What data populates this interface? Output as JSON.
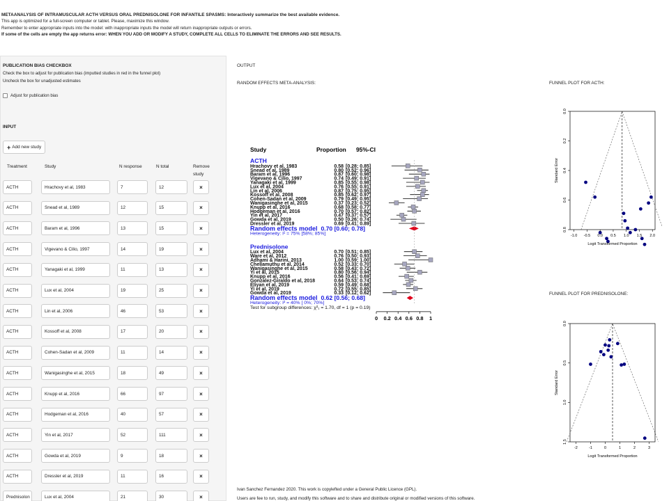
{
  "header": {
    "title": "METAANALYSIS OF INTRAMUSCULAR ACTH VERSUS ORAL PREDNISOLONE FOR INFANTILE SPASMS: Interactively summarize the best available evidence.",
    "line1": "This app is optimized for a full-screen computer or tablet. Please, maximize this window.",
    "line2": "Remember to enter appropriate inputs into the model: with inappropriate inputs the model will return inappropriate outputs or errors.",
    "line3": "If some of the cells are empty the app returns error: WHEN YOU ADD OR MODIFY A STUDY, COMPLETE ALL CELLS TO ELIMINATE THE ERRORS AND SEE RESULTS."
  },
  "sidebar": {
    "pb_title": "PUBLICATION BIAS CHECKBOX",
    "pb_line1": "Check the box to adjust for publication bias (imputted studies in red in the funnel plot)",
    "pb_line2": "Uncheck the box for unadjusted estimates",
    "pb_checkbox_label": "Adjust for publication bias",
    "input_title": "INPUT",
    "add_button": "Add new study",
    "columns": {
      "treatment": "Treatment",
      "study": "Study",
      "n_response": "N response",
      "n_total": "N total",
      "remove1": "Remove",
      "remove2": "study"
    },
    "remove_symbol": "×",
    "rows": [
      {
        "treatment": "ACTH",
        "study": "Hrachovy et al, 1983",
        "n_response": "7",
        "n_total": "12"
      },
      {
        "treatment": "ACTH",
        "study": "Snead et al, 1989",
        "n_response": "12",
        "n_total": "15"
      },
      {
        "treatment": "ACTH",
        "study": "Baram et al, 1996",
        "n_response": "13",
        "n_total": "15"
      },
      {
        "treatment": "ACTH",
        "study": "Vigevano & Cilio, 1997",
        "n_response": "14",
        "n_total": "19"
      },
      {
        "treatment": "ACTH",
        "study": "Yanagaki et al, 1999",
        "n_response": "11",
        "n_total": "13"
      },
      {
        "treatment": "ACTH",
        "study": "Lux et al, 2004",
        "n_response": "19",
        "n_total": "25"
      },
      {
        "treatment": "ACTH",
        "study": "Lin et al, 2006",
        "n_response": "46",
        "n_total": "53"
      },
      {
        "treatment": "ACTH",
        "study": "Kossoff et al, 2008",
        "n_response": "17",
        "n_total": "20"
      },
      {
        "treatment": "ACTH",
        "study": "Cohen-Sadan et al, 2009",
        "n_response": "11",
        "n_total": "14"
      },
      {
        "treatment": "ACTH",
        "study": "Wanigasinghe et al, 2015",
        "n_response": "18",
        "n_total": "49"
      },
      {
        "treatment": "ACTH",
        "study": "Knupp et al, 2016",
        "n_response": "66",
        "n_total": "97"
      },
      {
        "treatment": "ACTH",
        "study": "Hodgeman et al, 2016",
        "n_response": "40",
        "n_total": "57"
      },
      {
        "treatment": "ACTH",
        "study": "Yin et al, 2017",
        "n_response": "52",
        "n_total": "111"
      },
      {
        "treatment": "ACTH",
        "study": "Gowda et al, 2019",
        "n_response": "9",
        "n_total": "18"
      },
      {
        "treatment": "ACTH",
        "study": "Dressler et al, 2019",
        "n_response": "11",
        "n_total": "16"
      },
      {
        "treatment": "Prednisolon",
        "study": "Lux et al, 2004",
        "n_response": "21",
        "n_total": "30"
      }
    ]
  },
  "output": {
    "title": "OUTPUT",
    "re_title": "RANDOM EFFECTS META-ANALYSIS:",
    "funnel_acth_title": "FUNNEL PLOT FOR ACTH:",
    "funnel_pred_title": "FUNNEL PLOT FOR PREDNISOLONE:"
  },
  "forest": {
    "head_study": "Study",
    "head_prop": "Proportion",
    "head_ci": "95%-CI",
    "groups": [
      {
        "name": "ACTH",
        "studies": [
          {
            "study": "Hrachovy et al, 1983",
            "prop": "0.58",
            "ci": "[0.28; 0.85]",
            "p": 0.58,
            "lo": 0.28,
            "hi": 0.85
          },
          {
            "study": "Snead et al, 1989",
            "prop": "0.80",
            "ci": "[0.52; 0.96]",
            "p": 0.8,
            "lo": 0.52,
            "hi": 0.96
          },
          {
            "study": "Baram et al, 1996",
            "prop": "0.87",
            "ci": "[0.60; 0.98]",
            "p": 0.87,
            "lo": 0.6,
            "hi": 0.98
          },
          {
            "study": "Vigevano & Cilio, 1997",
            "prop": "0.74",
            "ci": "[0.49; 0.91]",
            "p": 0.74,
            "lo": 0.49,
            "hi": 0.91
          },
          {
            "study": "Yanagaki et al, 1999",
            "prop": "0.85",
            "ci": "[0.55; 0.98]",
            "p": 0.85,
            "lo": 0.55,
            "hi": 0.98
          },
          {
            "study": "Lux et al, 2004",
            "prop": "0.76",
            "ci": "[0.55; 0.91]",
            "p": 0.76,
            "lo": 0.55,
            "hi": 0.91
          },
          {
            "study": "Lin et al, 2006",
            "prop": "0.87",
            "ci": "[0.75; 0.95]",
            "p": 0.87,
            "lo": 0.75,
            "hi": 0.95
          },
          {
            "study": "Kossoff et al, 2008",
            "prop": "0.85",
            "ci": "[0.62; 0.97]",
            "p": 0.85,
            "lo": 0.62,
            "hi": 0.97
          },
          {
            "study": "Cohen-Sadan et al, 2009",
            "prop": "0.79",
            "ci": "[0.49; 0.95]",
            "p": 0.79,
            "lo": 0.49,
            "hi": 0.95
          },
          {
            "study": "Wanigasinghe et al, 2015",
            "prop": "0.37",
            "ci": "[0.23; 0.52]",
            "p": 0.37,
            "lo": 0.23,
            "hi": 0.52
          },
          {
            "study": "Knupp et al, 2016",
            "prop": "0.68",
            "ci": "[0.58; 0.77]",
            "p": 0.68,
            "lo": 0.58,
            "hi": 0.77
          },
          {
            "study": "Hodgeman et al, 2016",
            "prop": "0.70",
            "ci": "[0.57; 0.82]",
            "p": 0.7,
            "lo": 0.57,
            "hi": 0.82
          },
          {
            "study": "Yin et al, 2017",
            "prop": "0.47",
            "ci": "[0.37; 0.57]",
            "p": 0.47,
            "lo": 0.37,
            "hi": 0.57
          },
          {
            "study": "Gowda et al, 2019",
            "prop": "0.50",
            "ci": "[0.26; 0.74]",
            "p": 0.5,
            "lo": 0.26,
            "hi": 0.74
          },
          {
            "study": "Dressler et al, 2019",
            "prop": "0.69",
            "ci": "[0.41; 0.89]",
            "p": 0.69,
            "lo": 0.41,
            "hi": 0.89
          }
        ],
        "model_label": "Random effects model",
        "model_value": "0.70 [0.60; 0.78]",
        "model_p": 0.7,
        "model_lo": 0.6,
        "model_hi": 0.78,
        "heterogeneity": "Heterogeneity: I² = 75% [58%; 85%]"
      },
      {
        "name": "Prednisolone",
        "studies": [
          {
            "study": "Lux et al, 2004",
            "prop": "0.70",
            "ci": "[0.51; 0.85]",
            "p": 0.7,
            "lo": 0.51,
            "hi": 0.85
          },
          {
            "study": "Ware et al, 2012",
            "prop": "0.76",
            "ci": "[0.50; 0.93]",
            "p": 0.76,
            "lo": 0.5,
            "hi": 0.93
          },
          {
            "study": "Adhami & Harini, 2013",
            "prop": "1.00",
            "ci": "[0.59; 1.00]",
            "p": 1.0,
            "lo": 0.59,
            "hi": 1.0
          },
          {
            "study": "Chellamuthu et al, 2014",
            "prop": "0.52",
            "ci": "[0.33; 0.70]",
            "p": 0.52,
            "lo": 0.33,
            "hi": 0.7
          },
          {
            "study": "Wanigasinghe et al, 2015",
            "prop": "0.58",
            "ci": "[0.43; 0.72]",
            "p": 0.58,
            "lo": 0.43,
            "hi": 0.72
          },
          {
            "study": "Yi et al, 2015",
            "prop": "0.80",
            "ci": "[0.56; 0.94]",
            "p": 0.8,
            "lo": 0.56,
            "hi": 0.94
          },
          {
            "study": "Knupp et al, 2016",
            "prop": "0.56",
            "ci": "[0.41; 0.69]",
            "p": 0.56,
            "lo": 0.41,
            "hi": 0.69
          },
          {
            "study": "Gonzalez-Giraldo et al, 2018",
            "prop": "0.64",
            "ci": "[0.53; 0.74]",
            "p": 0.64,
            "lo": 0.53,
            "hi": 0.74
          },
          {
            "study": "Eliyan et al, 2019",
            "prop": "0.59",
            "ci": "[0.49; 0.68]",
            "p": 0.59,
            "lo": 0.49,
            "hi": 0.68
          },
          {
            "study": "Yi et al, 2019",
            "prop": "0.72",
            "ci": "[0.55; 0.85]",
            "p": 0.72,
            "lo": 0.55,
            "hi": 0.85
          },
          {
            "study": "Gowda et al, 2019",
            "prop": "0.33",
            "ci": "[0.12; 0.62]",
            "p": 0.33,
            "lo": 0.12,
            "hi": 0.62
          }
        ],
        "model_label": "Random effects model",
        "model_value": "0.62 [0.56; 0.68]",
        "model_p": 0.62,
        "model_lo": 0.56,
        "model_hi": 0.68,
        "heterogeneity": "Heterogeneity: I² = 40% [ 0%; 70%]"
      }
    ],
    "subgroup_test": "Test for subgroup differences: χ²₁ = 1.70, df = 1 (p = 0.19)",
    "axis_ticks": [
      "0",
      "0.2",
      "0.4",
      "0.6",
      "0.8",
      "1"
    ],
    "colors": {
      "group_title": "#1a1adf",
      "model": "#1a1adf",
      "diamond": "#e0001b",
      "box": "#a6a6bf"
    }
  },
  "funnel_acth": {
    "ylabel": "Standard Error",
    "xlabel": "Logit Transformed Proportion",
    "x_ticks": [
      "-1.0",
      "-0.5",
      "0.0",
      "0.5",
      "1.0",
      "1.5",
      "2.0"
    ],
    "y_ticks": [
      "0.0",
      "0.2",
      "0.4",
      "0.6",
      "0.8"
    ],
    "center": 0.84,
    "points": [
      [
        -0.55,
        0.48
      ],
      [
        -0.2,
        0.58
      ],
      [
        0.0,
        0.82
      ],
      [
        0.25,
        0.86
      ],
      [
        0.3,
        0.88
      ],
      [
        0.9,
        0.69
      ],
      [
        0.95,
        0.74
      ],
      [
        1.05,
        0.79
      ],
      [
        1.15,
        0.82
      ],
      [
        1.35,
        0.8
      ],
      [
        1.55,
        0.66
      ],
      [
        1.6,
        0.86
      ],
      [
        1.7,
        0.9
      ],
      [
        1.85,
        0.62
      ],
      [
        1.95,
        0.58
      ]
    ],
    "colors": {
      "point": "#000080"
    }
  },
  "funnel_pred": {
    "ylabel": "Standard Error",
    "xlabel": "Logit Transformed Proportion",
    "x_ticks": [
      "-2",
      "-1",
      "0",
      "1",
      "2",
      "3"
    ],
    "y_ticks": [
      "0.0",
      "0.5",
      "1.0",
      "1.5"
    ],
    "center": 0.5,
    "points": [
      [
        -1.0,
        0.55
      ],
      [
        -0.3,
        0.38
      ],
      [
        -0.1,
        0.42
      ],
      [
        0.0,
        0.29
      ],
      [
        0.2,
        0.36
      ],
      [
        0.25,
        0.3
      ],
      [
        0.4,
        0.45
      ],
      [
        1.1,
        0.56
      ],
      [
        1.3,
        0.55
      ],
      [
        0.85,
        0.27
      ],
      [
        0.3,
        0.22
      ],
      [
        2.7,
        1.55
      ]
    ],
    "colors": {
      "point": "#000080"
    }
  },
  "footer": {
    "line1": "Ivan Sanchez Fernandez 2020. This work is copylefted under a General Public Licence (GPL).",
    "line2": "Users are fee to run, study, and modify this software and to share and distribute original or modified versions of this software."
  }
}
